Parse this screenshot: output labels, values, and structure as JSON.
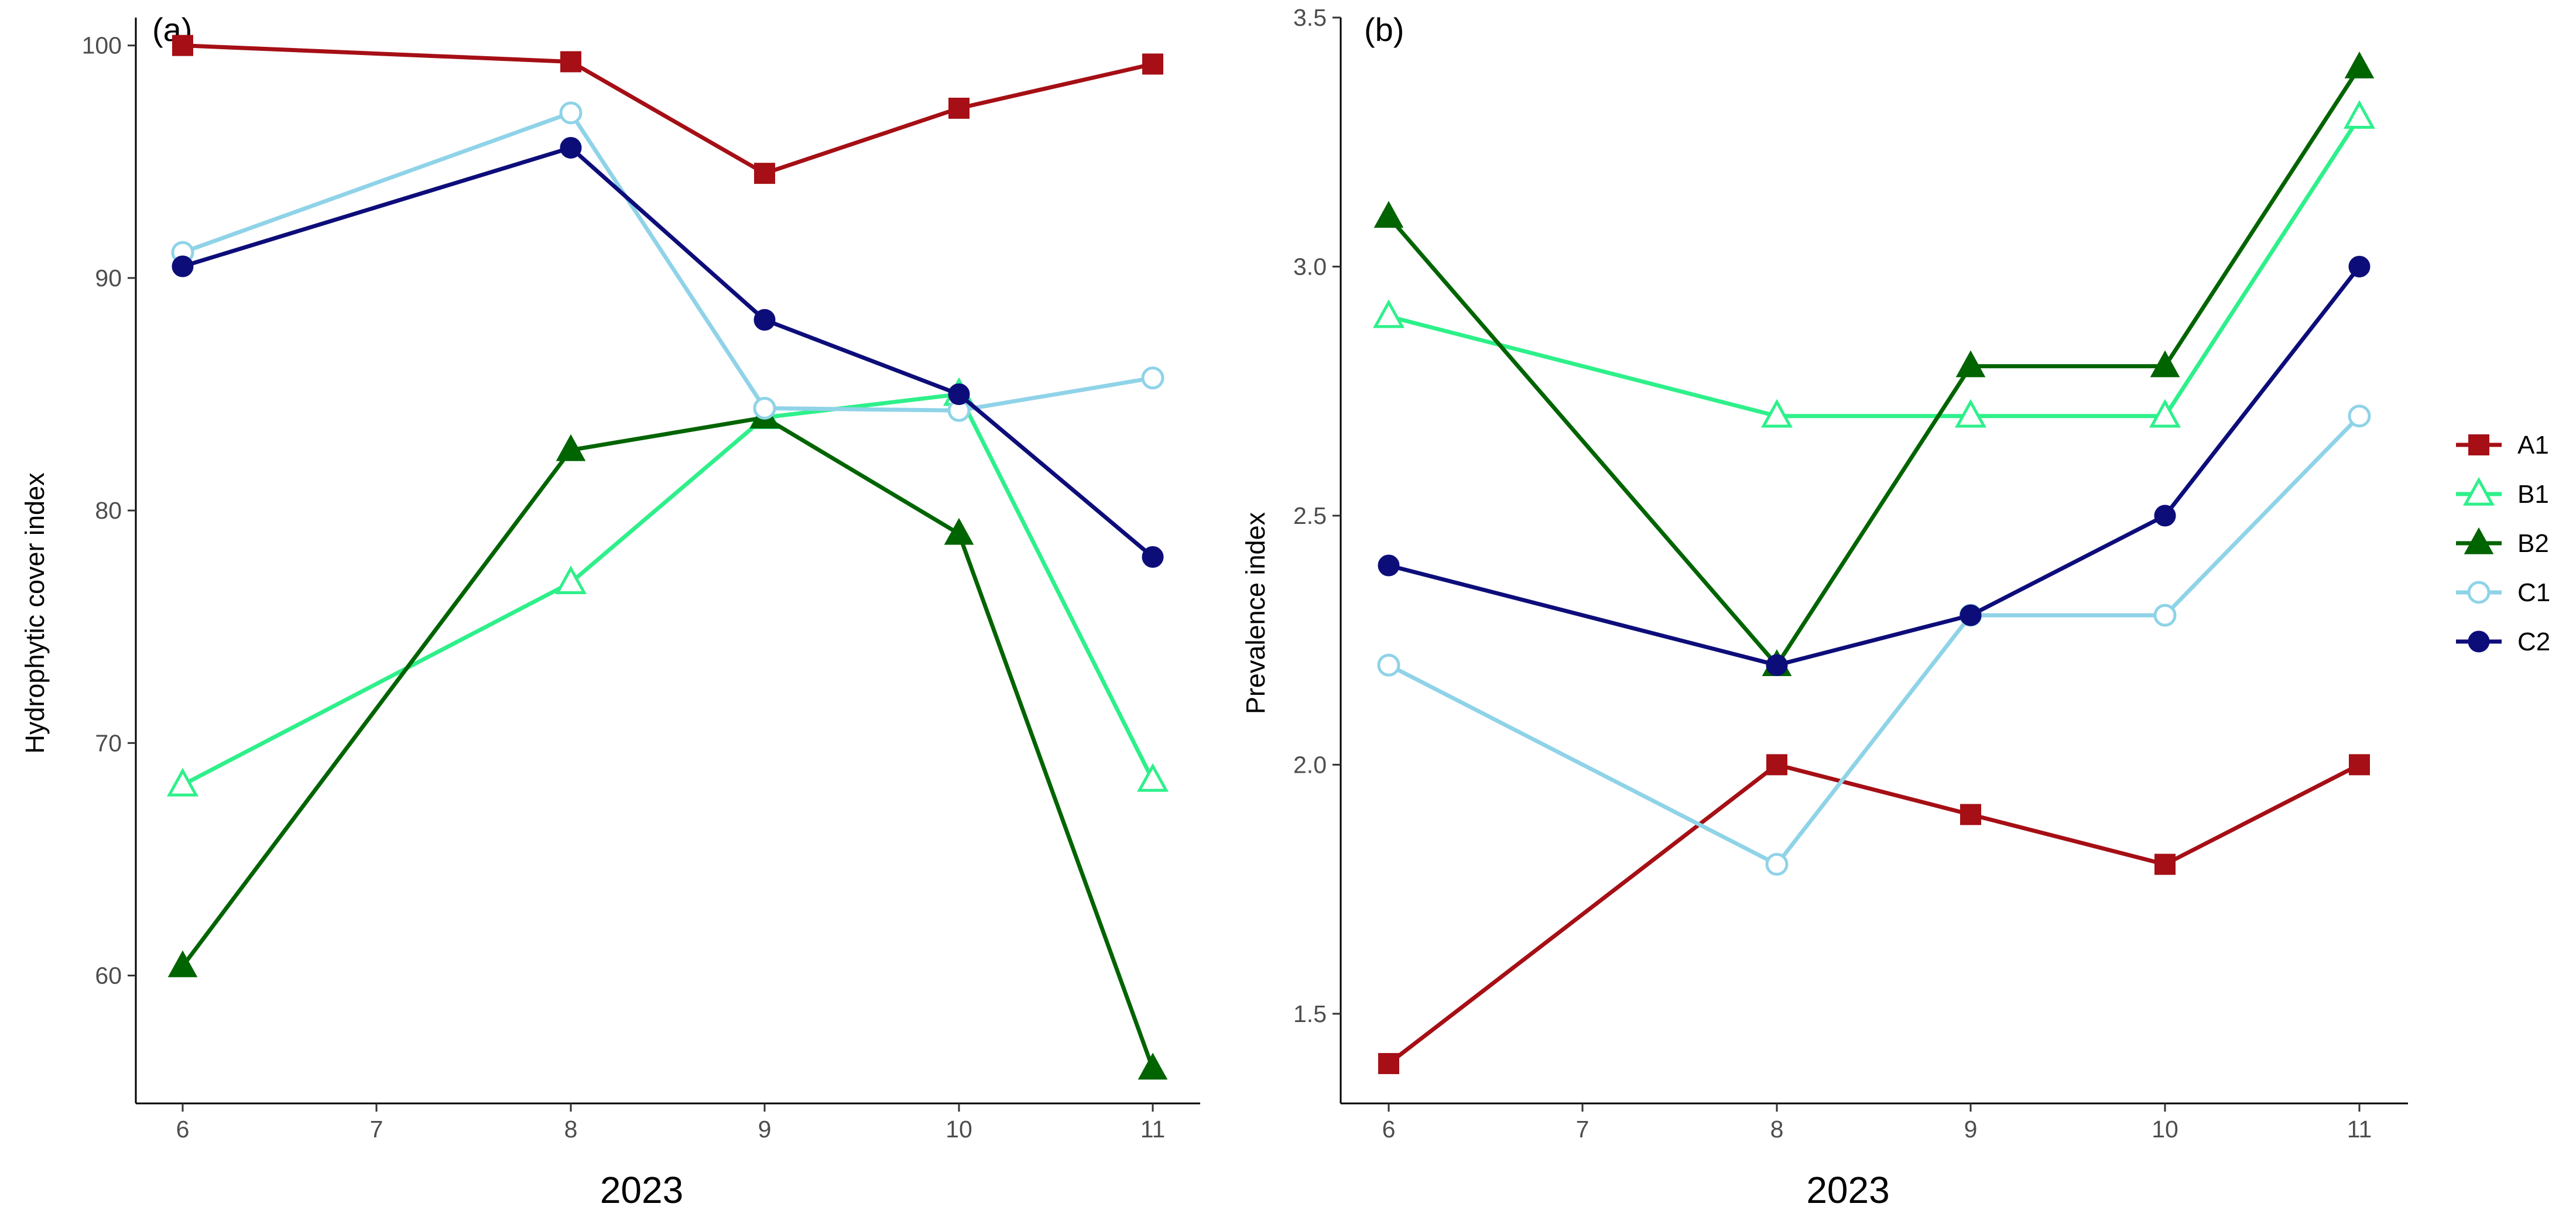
{
  "chart_data": [
    {
      "type": "line",
      "panel": "(a)",
      "title": "",
      "xlabel": "2023",
      "ylabel": "Hydrophytic cover index",
      "categories": [
        "6",
        "7",
        "8",
        "9",
        "10",
        "11"
      ],
      "x": [
        "6",
        "8",
        "9",
        "10",
        "11"
      ],
      "ylim": [
        54.5,
        101.2
      ],
      "yticks": [
        60,
        70,
        80,
        90,
        100
      ],
      "grid": false,
      "series": [
        {
          "name": "A1",
          "color": "#a50f15",
          "marker": "square-filled",
          "values": [
            100,
            99.3,
            94.5,
            97.3,
            99.2
          ]
        },
        {
          "name": "B1",
          "color": "#2ef08a",
          "marker": "triangle-open",
          "values": [
            68.2,
            76.9,
            84.0,
            85.0,
            68.4
          ]
        },
        {
          "name": "B2",
          "color": "#006400",
          "marker": "triangle-filled",
          "values": [
            60.4,
            82.6,
            84.0,
            79.0,
            56.0
          ]
        },
        {
          "name": "C1",
          "color": "#8fd3e8",
          "marker": "circle-open",
          "values": [
            91.1,
            97.1,
            84.4,
            84.3,
            85.7
          ]
        },
        {
          "name": "C2",
          "color": "#0d0d7a",
          "marker": "circle-filled",
          "values": [
            90.5,
            95.6,
            88.2,
            85.0,
            78.0
          ]
        }
      ]
    },
    {
      "type": "line",
      "panel": "(b)",
      "title": "",
      "xlabel": "2023",
      "ylabel": "Prevalence index",
      "categories": [
        "6",
        "7",
        "8",
        "9",
        "10",
        "11"
      ],
      "x": [
        "6",
        "8",
        "9",
        "10",
        "11"
      ],
      "ylim": [
        1.32,
        3.5
      ],
      "yticks": [
        1.5,
        2.0,
        2.5,
        3.0,
        3.5
      ],
      "ytick_labels": [
        "1.5",
        "2.0",
        "2.5",
        "3.0",
        "3.5"
      ],
      "grid": false,
      "series": [
        {
          "name": "A1",
          "color": "#a50f15",
          "marker": "square-filled",
          "values": [
            1.4,
            2.0,
            1.9,
            1.8,
            2.0
          ]
        },
        {
          "name": "B1",
          "color": "#2ef08a",
          "marker": "triangle-open",
          "values": [
            2.9,
            2.7,
            2.7,
            2.7,
            3.3
          ]
        },
        {
          "name": "B2",
          "color": "#006400",
          "marker": "triangle-filled",
          "values": [
            3.1,
            2.2,
            2.8,
            2.8,
            3.4
          ]
        },
        {
          "name": "C1",
          "color": "#8fd3e8",
          "marker": "circle-open",
          "values": [
            2.2,
            1.8,
            2.3,
            2.3,
            2.7
          ]
        },
        {
          "name": "C2",
          "color": "#0d0d7a",
          "marker": "circle-filled",
          "values": [
            2.4,
            2.2,
            2.3,
            2.5,
            3.0
          ]
        }
      ]
    }
  ],
  "legend": {
    "position": "right",
    "items": [
      {
        "name": "A1",
        "color": "#a50f15",
        "marker": "square-filled"
      },
      {
        "name": "B1",
        "color": "#2ef08a",
        "marker": "triangle-open"
      },
      {
        "name": "B2",
        "color": "#006400",
        "marker": "triangle-filled"
      },
      {
        "name": "C1",
        "color": "#8fd3e8",
        "marker": "circle-open"
      },
      {
        "name": "C2",
        "color": "#0d0d7a",
        "marker": "circle-filled"
      }
    ]
  }
}
